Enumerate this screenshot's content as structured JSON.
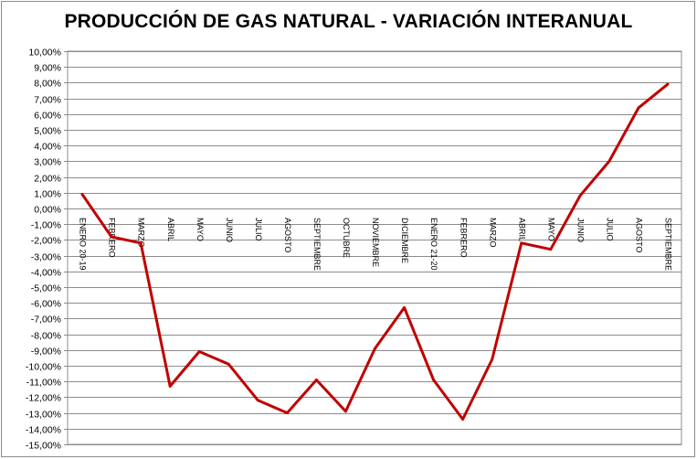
{
  "chart_data": {
    "type": "line",
    "title": "PRODUCCIÓN DE GAS NATURAL - VARIACIÓN INTERANUAL",
    "xlabel": "",
    "ylabel": "",
    "ylim": [
      -15,
      10
    ],
    "y_tick_step": 1,
    "y_tick_labels": [
      "10,00%",
      "9,00%",
      "8,00%",
      "7,00%",
      "6,00%",
      "5,00%",
      "4,00%",
      "3,00%",
      "2,00%",
      "1,00%",
      "0,00%",
      "-1,00%",
      "-2,00%",
      "-3,00%",
      "-4,00%",
      "-5,00%",
      "-6,00%",
      "-7,00%",
      "-8,00%",
      "-9,00%",
      "-10,00%",
      "-11,00%",
      "-12,00%",
      "-13,00%",
      "-14,00%",
      "-15,00%"
    ],
    "grid": true,
    "legend": "none",
    "line_color": "#c00000",
    "categories": [
      "ENERO 20-19",
      "FEBRERO",
      "MARZO",
      "ABRIL",
      "MAYO",
      "JUNIO",
      "JULIO",
      "AGOSTO",
      "SEPTIEMBRE",
      "OCTUBRE",
      "NOVIEMBRE",
      "DICIEMBRE",
      "ENERO 21-20",
      "FEBRERO",
      "MARZO",
      "ABRIL",
      "MAYO",
      "JUNIO",
      "JULIO",
      "AGOSTO",
      "SEPTIEMBRE"
    ],
    "series": [
      {
        "values": [
          0.9,
          -1.8,
          -2.2,
          -11.3,
          -9.1,
          -9.9,
          -12.2,
          -13.0,
          -10.9,
          -12.9,
          -8.9,
          -6.3,
          -10.9,
          -13.4,
          -9.6,
          -2.2,
          -2.6,
          0.8,
          3.0,
          6.4,
          7.9
        ]
      }
    ]
  }
}
